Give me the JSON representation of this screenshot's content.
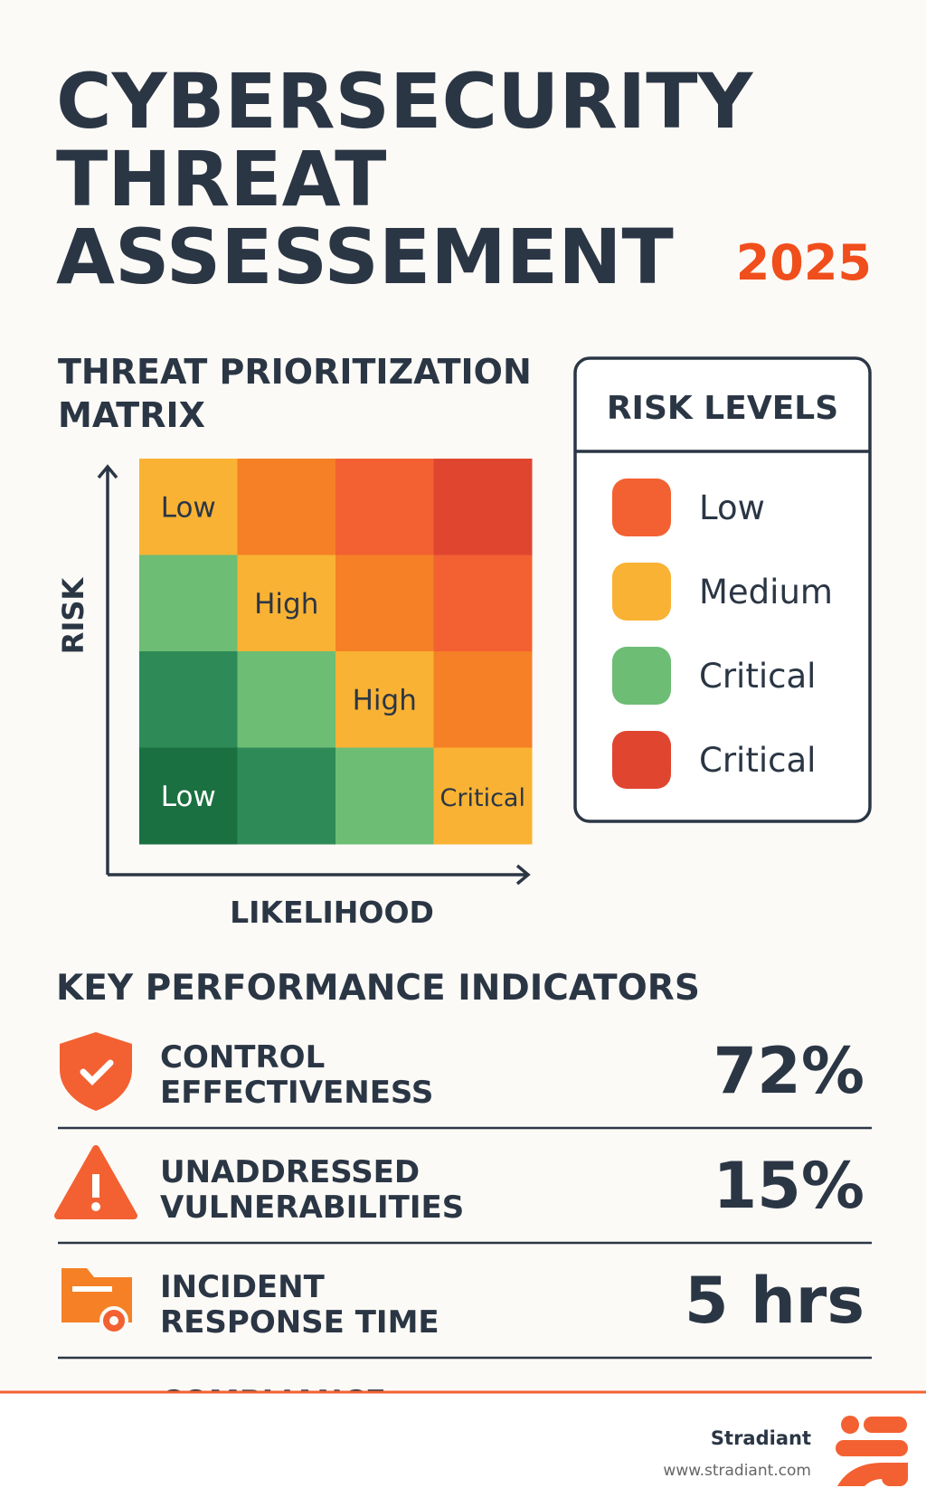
{
  "header": {
    "title_lines": [
      "CYBERSECURITY",
      "THREAT",
      "ASSESSEMENT"
    ],
    "year": "2025"
  },
  "matrix": {
    "title_lines": [
      "THREAT PRIORITIZATION",
      "MATRIX"
    ],
    "y_label": "RISK",
    "x_label": "LIKELIHOOD",
    "rows": [
      [
        {
          "color": "#f9b233",
          "label": "Low"
        },
        {
          "color": "#f58025"
        },
        {
          "color": "#f36132"
        },
        {
          "color": "#e04530"
        }
      ],
      [
        {
          "color": "#6dbd74"
        },
        {
          "color": "#f9b233",
          "label": "High"
        },
        {
          "color": "#f58025"
        },
        {
          "color": "#f36132"
        }
      ],
      [
        {
          "color": "#2e8b57"
        },
        {
          "color": "#6dbd74"
        },
        {
          "color": "#f9b233",
          "label": "High"
        },
        {
          "color": "#f58025"
        }
      ],
      [
        {
          "color": "#1a7040",
          "label": "Low"
        },
        {
          "color": "#2e8b57"
        },
        {
          "color": "#6dbd74"
        },
        {
          "color": "#f9b233",
          "label": "Critical"
        }
      ]
    ]
  },
  "legend": {
    "title": "RISK LEVELS",
    "items": [
      {
        "label": "Low",
        "color": "#f36132"
      },
      {
        "label": "Medium",
        "color": "#f9b233"
      },
      {
        "label": "Critical",
        "color": "#6dbd74"
      },
      {
        "label": "Critical",
        "color": "#e04530"
      }
    ]
  },
  "kpis": {
    "title": "KEY PERFORMANCE INDICATORS",
    "items": [
      {
        "label_lines": [
          "CONTROL",
          "EFFECTIVENESS"
        ],
        "value": "72%"
      },
      {
        "label_lines": [
          "UNADDRESSED",
          "VULNERABILITIES"
        ],
        "value": "15%"
      },
      {
        "label_lines": [
          "INCIDENT",
          "RESPONSE TIME"
        ],
        "value": "5 hrs"
      },
      {
        "label_lines": [
          "COMPLIANCE"
        ]
      }
    ]
  },
  "footer": {
    "brand": "Stradiant",
    "url": "www.stradiant.com"
  }
}
